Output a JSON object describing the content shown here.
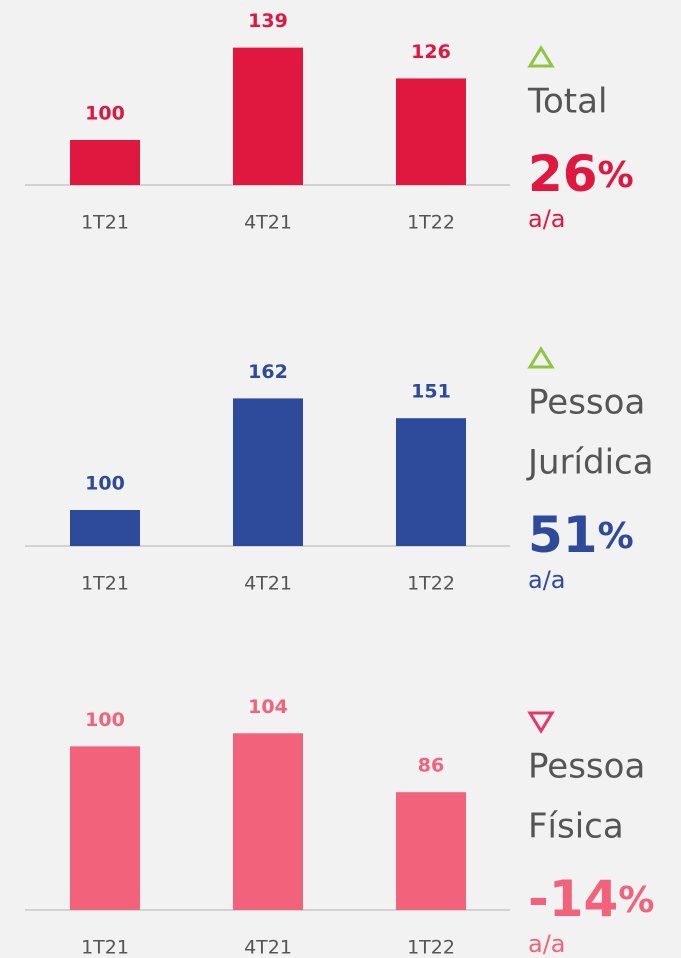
{
  "chart_data": [
    {
      "type": "bar",
      "categories": [
        "1T21",
        "4T21",
        "1T22"
      ],
      "values": [
        100,
        139,
        126
      ],
      "color": "#e0173f",
      "ylim": [
        81,
        157
      ],
      "trend": "up",
      "label_lines": [
        "Total"
      ],
      "change_value": "26",
      "change_unit": "%",
      "change_note": "a/a"
    },
    {
      "type": "bar",
      "categories": [
        "1T21",
        "4T21",
        "1T22"
      ],
      "values": [
        100,
        162,
        151
      ],
      "color": "#2e4a9a",
      "ylim": [
        80,
        180
      ],
      "trend": "up",
      "label_lines": [
        "Pessoa",
        "Jurídica"
      ],
      "change_value": "51",
      "change_unit": "%",
      "change_note": "a/a"
    },
    {
      "type": "bar",
      "categories": [
        "1T21",
        "4T21",
        "1T22"
      ],
      "values": [
        100,
        104,
        86
      ],
      "color": "#f2637b",
      "ylim": [
        50,
        105
      ],
      "trend": "down",
      "label_lines": [
        "Pessoa",
        "Física"
      ],
      "change_value": "-14",
      "change_unit": "%",
      "change_note": "a/a"
    }
  ]
}
